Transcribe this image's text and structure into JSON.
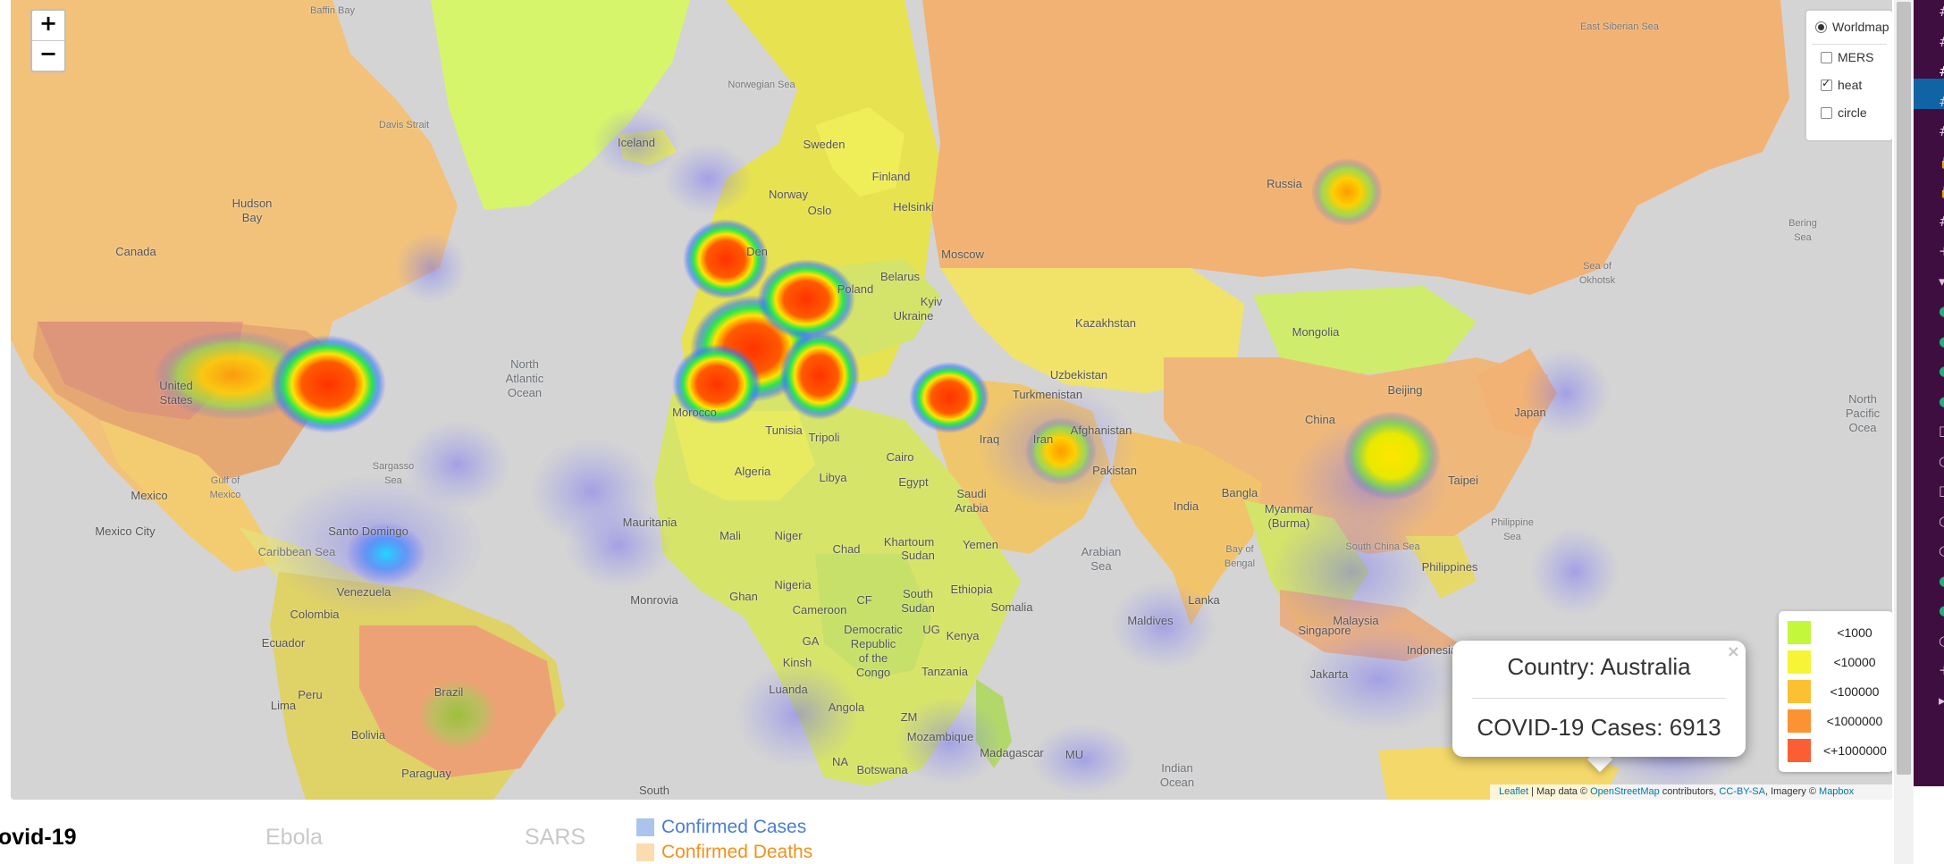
{
  "map": {
    "zoom_in": "+",
    "zoom_out": "−",
    "labels": [
      {
        "id": "canada",
        "text": "Canada"
      },
      {
        "id": "hudson-bay",
        "text": "Hudson\nBay"
      },
      {
        "id": "baffin-bay",
        "text": "Baffin Bay"
      },
      {
        "id": "davis-strait",
        "text": "Davis Strait"
      },
      {
        "id": "united-states",
        "text": "United\nStates"
      },
      {
        "id": "mexico",
        "text": "Mexico"
      },
      {
        "id": "gulf-of-mexico",
        "text": "Gulf of\nMexico"
      },
      {
        "id": "mexico-city",
        "text": "Mexico City"
      },
      {
        "id": "sargasso-sea",
        "text": "Sargasso\nSea"
      },
      {
        "id": "north-atlantic",
        "text": "North\nAtlantic\nOcean"
      },
      {
        "id": "caribbean-sea",
        "text": "Caribbean Sea"
      },
      {
        "id": "santo-domingo",
        "text": "Santo Domingo"
      },
      {
        "id": "venezuela",
        "text": "Venezuela"
      },
      {
        "id": "colombia",
        "text": "Colombia"
      },
      {
        "id": "ecuador",
        "text": "Ecuador"
      },
      {
        "id": "peru",
        "text": "Peru"
      },
      {
        "id": "lima",
        "text": "Lima"
      },
      {
        "id": "brazil",
        "text": "Brazil"
      },
      {
        "id": "bolivia",
        "text": "Bolivia"
      },
      {
        "id": "paraguay",
        "text": "Paraguay"
      },
      {
        "id": "south",
        "text": "South"
      },
      {
        "id": "iceland",
        "text": "Iceland"
      },
      {
        "id": "norwegian-sea",
        "text": "Norwegian Sea"
      },
      {
        "id": "sweden",
        "text": "Sweden"
      },
      {
        "id": "finland",
        "text": "Finland"
      },
      {
        "id": "norway",
        "text": "Norway"
      },
      {
        "id": "oslo",
        "text": "Oslo"
      },
      {
        "id": "helsinki",
        "text": "Helsinki"
      },
      {
        "id": "denmark",
        "text": "Den"
      },
      {
        "id": "poland",
        "text": "Poland"
      },
      {
        "id": "belarus",
        "text": "Belarus"
      },
      {
        "id": "ukraine",
        "text": "Ukraine"
      },
      {
        "id": "kyiv",
        "text": "Kyiv"
      },
      {
        "id": "moscow",
        "text": "Moscow"
      },
      {
        "id": "russia",
        "text": "Russia"
      },
      {
        "id": "east-siberian-sea",
        "text": "East Siberian Sea"
      },
      {
        "id": "bering-sea",
        "text": "Bering\nSea"
      },
      {
        "id": "sea-of-okhotsk",
        "text": "Sea of\nOkhotsk"
      },
      {
        "id": "north-pacific",
        "text": "North\nPacific\nOcea"
      },
      {
        "id": "kazakhstan",
        "text": "Kazakhstan"
      },
      {
        "id": "mongolia",
        "text": "Mongolia"
      },
      {
        "id": "uzbekistan",
        "text": "Uzbekistan"
      },
      {
        "id": "turkmenistan",
        "text": "Turkmenistan"
      },
      {
        "id": "afghanistan",
        "text": "Afghanistan"
      },
      {
        "id": "pakistan",
        "text": "Pakistan"
      },
      {
        "id": "china",
        "text": "China"
      },
      {
        "id": "beijing",
        "text": "Beijing"
      },
      {
        "id": "japan",
        "text": "Japan"
      },
      {
        "id": "taipei",
        "text": "Taipei"
      },
      {
        "id": "philippine-sea",
        "text": "Philippine\nSea"
      },
      {
        "id": "philippines",
        "text": "Philippines"
      },
      {
        "id": "south-china-sea",
        "text": "South China Sea"
      },
      {
        "id": "india",
        "text": "India"
      },
      {
        "id": "bangladesh",
        "text": "Bangla"
      },
      {
        "id": "myanmar",
        "text": "Myanmar\n(Burma)"
      },
      {
        "id": "bay-of-bengal",
        "text": "Bay of\nBengal"
      },
      {
        "id": "arabian-sea",
        "text": "Arabian\nSea"
      },
      {
        "id": "maldives",
        "text": "Maldives"
      },
      {
        "id": "lanka",
        "text": "Lanka"
      },
      {
        "id": "malaysia",
        "text": "Malaysia"
      },
      {
        "id": "singapore",
        "text": "Singapore"
      },
      {
        "id": "indonesia",
        "text": "Indonesia"
      },
      {
        "id": "jakarta",
        "text": "Jakarta"
      },
      {
        "id": "indian-ocean",
        "text": "Indian\nOcean"
      },
      {
        "id": "iran",
        "text": "Iran"
      },
      {
        "id": "iraq",
        "text": "Iraq"
      },
      {
        "id": "saudi-arabia",
        "text": "Saudi\nArabia"
      },
      {
        "id": "yemen",
        "text": "Yemen"
      },
      {
        "id": "egypt",
        "text": "Egypt"
      },
      {
        "id": "cairo",
        "text": "Cairo"
      },
      {
        "id": "libya",
        "text": "Libya"
      },
      {
        "id": "tripoli",
        "text": "Tripoli"
      },
      {
        "id": "tunisia",
        "text": "Tunisia"
      },
      {
        "id": "algeria",
        "text": "Algeria"
      },
      {
        "id": "morocco",
        "text": "Morocco"
      },
      {
        "id": "mauritania",
        "text": "Mauritania"
      },
      {
        "id": "mali",
        "text": "Mali"
      },
      {
        "id": "niger",
        "text": "Niger"
      },
      {
        "id": "chad",
        "text": "Chad"
      },
      {
        "id": "sudan",
        "text": "Sudan"
      },
      {
        "id": "khartoum",
        "text": "Khartoum"
      },
      {
        "id": "south-sudan",
        "text": "South\nSudan"
      },
      {
        "id": "ethiopia",
        "text": "Ethiopia"
      },
      {
        "id": "somalia",
        "text": "Somalia"
      },
      {
        "id": "nigeria",
        "text": "Nigeria"
      },
      {
        "id": "ghana",
        "text": "Ghan"
      },
      {
        "id": "monrovia",
        "text": "Monrovia"
      },
      {
        "id": "cameroon",
        "text": "Cameroon"
      },
      {
        "id": "drc",
        "text": "Democratic\nRepublic\nof the\nCongo"
      },
      {
        "id": "kenya",
        "text": "Kenya"
      },
      {
        "id": "tanzania",
        "text": "Tanzania"
      },
      {
        "id": "angola",
        "text": "Angola"
      },
      {
        "id": "zambia",
        "text": "ZM"
      },
      {
        "id": "mozambique",
        "text": "Mozambique"
      },
      {
        "id": "madagascar",
        "text": "Madagascar"
      },
      {
        "id": "mauritius",
        "text": "MU"
      },
      {
        "id": "botswana",
        "text": "Botswana"
      },
      {
        "id": "namibia",
        "text": "NA"
      },
      {
        "id": "kinshasa",
        "text": "Kinsh"
      },
      {
        "id": "luanda",
        "text": "Luanda"
      },
      {
        "id": "gabon",
        "text": "GA"
      },
      {
        "id": "cf",
        "text": "CF"
      },
      {
        "id": "ug",
        "text": "UG"
      }
    ]
  },
  "layers": {
    "base": "Worldmap",
    "overlays": [
      {
        "label": "MERS",
        "checked": false
      },
      {
        "label": "heat",
        "checked": true
      },
      {
        "label": "circle",
        "checked": false
      }
    ]
  },
  "legend": [
    {
      "label": "<1000",
      "color": "#c2f73c"
    },
    {
      "label": "<10000",
      "color": "#f6f434"
    },
    {
      "label": "<100000",
      "color": "#fbc133"
    },
    {
      "label": "<1000000",
      "color": "#fb9333"
    },
    {
      "label": "<+1000000",
      "color": "#fb5e33"
    }
  ],
  "popup": {
    "close": "×",
    "line1": "Country: Australia",
    "line2": "COVID-19 Cases: 6913"
  },
  "attribution": {
    "leaflet": "Leaflet",
    "sep1": " | Map data © ",
    "osm": "OpenStreetMap",
    "sep2": " contributors, ",
    "license": "CC-BY-SA",
    "sep3": ", Imagery © ",
    "mapbox": "Mapbox"
  },
  "tabs": [
    {
      "label": "ovid-19"
    },
    {
      "label": "Ebola"
    },
    {
      "label": "SARS"
    }
  ],
  "series_key": [
    {
      "label": "Confirmed Cases",
      "color": "#4a7ed6",
      "swatch": "#aac4ee"
    },
    {
      "label": "Confirmed Deaths",
      "color": "#f0921e",
      "swatch": "#fbdcb0"
    }
  ],
  "sidebar": {
    "glyphs": [
      "#",
      "#",
      "#",
      "#",
      "#",
      "🔒",
      "🔒",
      "#",
      "+",
      "▾",
      "●",
      "●",
      "●",
      "●",
      "□",
      "○",
      "□",
      "○",
      "○",
      "●",
      "●",
      "○",
      "+",
      "▸"
    ]
  }
}
